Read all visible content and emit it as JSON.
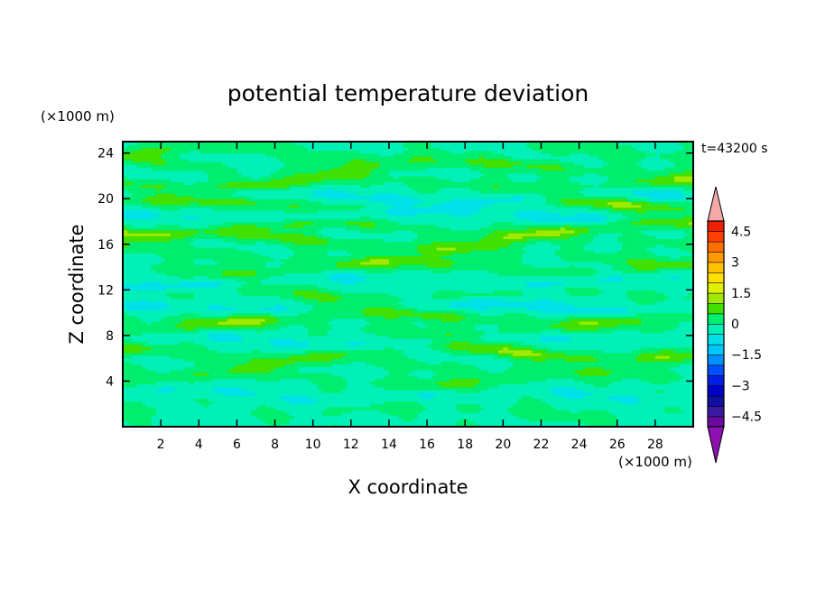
{
  "chart_data": {
    "type": "heatmap",
    "title": "potential temperature deviation",
    "xlabel": "X coordinate",
    "ylabel": "Z coordinate",
    "x_unit": "(×1000 m)",
    "y_unit": "(×1000 m)",
    "time_label": "t=43200 s",
    "xlim": [
      0,
      30
    ],
    "ylim": [
      0,
      25
    ],
    "x_ticks": [
      2,
      4,
      6,
      8,
      10,
      12,
      14,
      16,
      18,
      20,
      22,
      24,
      26,
      28
    ],
    "y_ticks": [
      4,
      8,
      12,
      16,
      20,
      24
    ],
    "colorbar": {
      "levels": [
        -5,
        -4.5,
        -4,
        -3.5,
        -3,
        -2.5,
        -2,
        -1.5,
        -1,
        -0.5,
        0,
        0.5,
        1,
        1.5,
        2,
        2.5,
        3,
        3.5,
        4,
        4.5,
        5
      ],
      "tick_labels": [
        "4.5",
        "3",
        "1.5",
        "0",
        "−1.5",
        "−3",
        "−4.5"
      ],
      "tick_values": [
        4.5,
        3,
        1.5,
        0,
        -1.5,
        -3,
        -4.5
      ],
      "colors": [
        "#6a0aa0",
        "#3a1aa0",
        "#1010a0",
        "#0000c8",
        "#0020e8",
        "#0050ff",
        "#0090ff",
        "#00c8ff",
        "#00e0e8",
        "#00f0b8",
        "#00ee70",
        "#40e000",
        "#a0e800",
        "#e0f000",
        "#ffe000",
        "#ffc000",
        "#ff9a00",
        "#ff7000",
        "#ff4000",
        "#ee2000"
      ],
      "under_color": "#8e10b0",
      "over_color": "#f4a8a8"
    },
    "layers": [
      {
        "z": 24.0,
        "amp": 0.7
      },
      {
        "z": 22.8,
        "amp": 0.9
      },
      {
        "z": 21.4,
        "amp": 1.1
      },
      {
        "z": 20.2,
        "amp": -0.9
      },
      {
        "z": 19.6,
        "amp": 1.2
      },
      {
        "z": 18.6,
        "amp": -0.8
      },
      {
        "z": 17.4,
        "amp": 1.3
      },
      {
        "z": 16.2,
        "amp": 1.0
      },
      {
        "z": 15.0,
        "amp": 0.6
      },
      {
        "z": 14.0,
        "amp": 1.1
      },
      {
        "z": 12.8,
        "amp": -0.7
      },
      {
        "z": 11.6,
        "amp": 0.7
      },
      {
        "z": 10.4,
        "amp": -0.9
      },
      {
        "z": 9.6,
        "amp": 1.2
      },
      {
        "z": 8.6,
        "amp": 0.8
      },
      {
        "z": 7.6,
        "amp": -0.6
      },
      {
        "z": 6.6,
        "amp": 1.2
      },
      {
        "z": 5.4,
        "amp": 0.6
      },
      {
        "z": 4.2,
        "amp": 0.8
      },
      {
        "z": 2.8,
        "amp": -0.5
      },
      {
        "z": 1.4,
        "amp": 0.4
      }
    ]
  }
}
